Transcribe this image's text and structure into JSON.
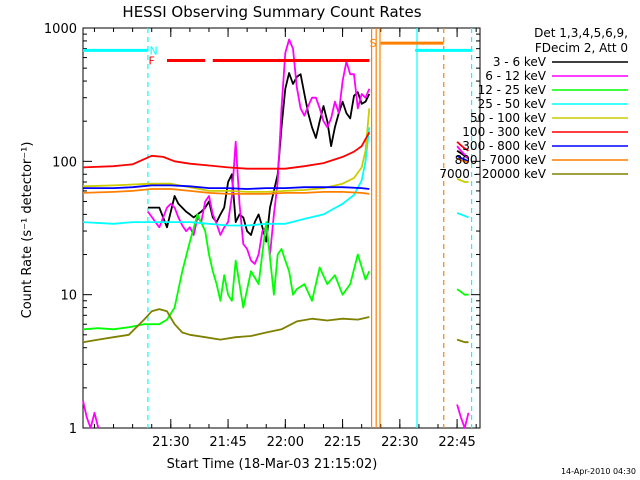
{
  "chart_data": {
    "type": "line",
    "title": "HESSI Observing Summary Count Rates",
    "xlabel": "Start Time (18-Mar-03 21:15:02)",
    "ylabel": "Count Rate (s⁻¹ detector⁻¹)",
    "yscale": "log",
    "ylim": [
      1,
      1000
    ],
    "xlim_minutes": [
      -8.0,
      96.0
    ],
    "yticks": [
      {
        "value": 1,
        "label": "1"
      },
      {
        "value": 10,
        "label": "10"
      },
      {
        "value": 100,
        "label": "100"
      },
      {
        "value": 1000,
        "label": "1000"
      }
    ],
    "xticks": [
      {
        "minute": 15,
        "label": "21:30"
      },
      {
        "minute": 30,
        "label": "21:45"
      },
      {
        "minute": 45,
        "label": "22:00"
      },
      {
        "minute": 60,
        "label": "22:15"
      },
      {
        "minute": 75,
        "label": "22:30"
      },
      {
        "minute": 90,
        "label": "22:45"
      }
    ],
    "legend": {
      "position": "right",
      "header": [
        "Det 1,3,4,5,6,9,",
        "FDecim 2, Att 0"
      ]
    },
    "series": [
      {
        "name": "3 - 6 keV",
        "color": "#000000",
        "segments": [
          {
            "x": [
              9,
              12,
              14,
              16,
              17,
              19,
              20,
              21,
              22,
              23,
              24,
              25,
              26,
              27,
              28,
              29,
              30,
              31,
              32,
              33,
              34,
              35,
              36,
              37,
              38,
              39,
              40,
              41,
              42,
              43,
              44,
              45,
              46,
              47,
              48,
              49,
              50,
              51,
              52,
              53,
              54,
              55,
              56,
              57,
              58,
              59,
              60,
              61,
              62,
              63,
              64,
              65,
              66,
              67
            ],
            "y": [
              45,
              45,
              32,
              55,
              48,
              42,
              40,
              38,
              40,
              42,
              45,
              50,
              38,
              35,
              40,
              45,
              70,
              80,
              35,
              40,
              38,
              30,
              28,
              35,
              40,
              32,
              25,
              45,
              60,
              80,
              180,
              350,
              460,
              380,
              430,
              450,
              320,
              230,
              180,
              150,
              200,
              260,
              200,
              130,
              180,
              230,
              280,
              230,
              210,
              310,
              330,
              270,
              280,
              320
            ]
          },
          {
            "x": [
              90,
              91,
              92,
              93
            ],
            "y": [
              120,
              115,
              110,
              105
            ]
          }
        ]
      },
      {
        "name": "6 - 12 keV",
        "color": "#ff00ff",
        "segments": [
          {
            "x": [
              -8,
              -7,
              -6,
              -5,
              -4
            ],
            "y": [
              1.6,
              1.2,
              1,
              1.3,
              1
            ]
          },
          {
            "x": [
              9,
              12,
              13,
              14,
              15,
              16,
              17,
              18,
              19,
              20,
              21,
              22,
              23,
              24,
              25,
              26,
              27,
              28,
              29,
              30,
              31,
              32,
              33,
              34,
              35,
              36,
              37,
              38,
              39,
              40,
              41,
              42,
              43,
              44,
              45,
              46,
              47,
              48,
              49,
              50,
              51,
              52,
              53,
              54,
              55,
              56,
              57,
              58,
              59,
              60,
              61,
              62,
              63,
              64,
              65,
              66,
              67
            ],
            "y": [
              42,
              32,
              38,
              45,
              48,
              45,
              38,
              33,
              30,
              32,
              28,
              38,
              35,
              50,
              55,
              40,
              34,
              28,
              32,
              35,
              55,
              140,
              48,
              24,
              22,
              18,
              17,
              20,
              30,
              32,
              20,
              40,
              70,
              250,
              650,
              820,
              700,
              360,
              250,
              220,
              260,
              300,
              300,
              250,
              200,
              180,
              210,
              280,
              230,
              400,
              560,
              450,
              450,
              250,
              320,
              300,
              350
            ]
          },
          {
            "x": [
              90,
              91,
              92,
              93
            ],
            "y": [
              130,
              120,
              112,
              105
            ]
          },
          {
            "x": [
              90,
              91,
              92,
              93
            ],
            "y": [
              1.5,
              1.2,
              1,
              1.3
            ]
          }
        ]
      },
      {
        "name": "12 - 25 keV",
        "color": "#00ff00",
        "segments": [
          {
            "x": [
              -8,
              -4,
              0,
              4,
              8,
              12,
              14,
              16,
              18,
              20,
              22,
              24,
              25,
              26,
              27,
              28,
              29,
              30,
              31,
              32,
              34,
              36,
              38,
              40,
              42,
              43,
              44,
              45,
              46,
              47,
              48,
              50,
              52,
              54,
              56,
              58,
              60,
              62,
              64,
              66,
              67
            ],
            "y": [
              5.5,
              5.6,
              5.5,
              5.7,
              6,
              6,
              6.5,
              8,
              15,
              25,
              40,
              30,
              20,
              15,
              12,
              9,
              14,
              10,
              9,
              18,
              8,
              15,
              12,
              35,
              10,
              20,
              22,
              18,
              15,
              10,
              11,
              12,
              9,
              16,
              12,
              14,
              10,
              12,
              20,
              13,
              15
            ]
          },
          {
            "x": [
              90,
              91,
              92,
              93
            ],
            "y": [
              11,
              10.5,
              10,
              10
            ]
          }
        ]
      },
      {
        "name": "25 - 50 keV",
        "color": "#00ffff",
        "segments": [
          {
            "x": [
              -8,
              0,
              5,
              10,
              15,
              20,
              25,
              30,
              35,
              40,
              45,
              50,
              55,
              60,
              63,
              65,
              66,
              67
            ],
            "y": [
              35,
              34,
              35,
              35,
              35,
              35,
              34,
              33,
              33,
              34,
              34,
              37,
              40,
              48,
              56,
              72,
              100,
              180
            ]
          },
          {
            "x": [
              90,
              91,
              92,
              93
            ],
            "y": [
              41,
              40,
              39,
              38
            ]
          }
        ]
      },
      {
        "name": "50 - 100 keV",
        "color": "#cccc00",
        "segments": [
          {
            "x": [
              -8,
              0,
              5,
              10,
              15,
              20,
              25,
              30,
              35,
              40,
              45,
              50,
              55,
              60,
              63,
              65,
              66,
              67
            ],
            "y": [
              65,
              66,
              67,
              68,
              68,
              64,
              60,
              60,
              59,
              59,
              60,
              61,
              63,
              68,
              75,
              90,
              120,
              250
            ]
          },
          {
            "x": [
              90,
              91,
              92,
              93
            ],
            "y": [
              74,
              72,
              70,
              70
            ]
          }
        ]
      },
      {
        "name": "100 - 300 keV",
        "color": "#ff0000",
        "segments": [
          {
            "x": [
              -8,
              0,
              5,
              10,
              13,
              16,
              20,
              25,
              30,
              35,
              40,
              45,
              50,
              55,
              60,
              63,
              65,
              67
            ],
            "y": [
              90,
              92,
              95,
              110,
              108,
              100,
              96,
              93,
              90,
              88,
              88,
              88,
              92,
              97,
              108,
              118,
              130,
              165
            ]
          },
          {
            "x": [
              90,
              91,
              92,
              93
            ],
            "y": [
              140,
              132,
              125,
              120
            ]
          }
        ]
      },
      {
        "name": "300 - 800 keV",
        "color": "#0000ff",
        "segments": [
          {
            "x": [
              -8,
              0,
              5,
              10,
              15,
              20,
              25,
              30,
              35,
              40,
              45,
              50,
              55,
              60,
              65,
              67
            ],
            "y": [
              63,
              63,
              64,
              66,
              66,
              65,
              63,
              63,
              62,
              63,
              63,
              64,
              64,
              64,
              63,
              62
            ]
          },
          {
            "x": [
              90,
              91,
              92,
              93
            ],
            "y": [
              110,
              106,
              103,
              100
            ]
          }
        ]
      },
      {
        "name": "800 - 7000 keV",
        "color": "#ff7f00",
        "segments": [
          {
            "x": [
              -8,
              0,
              5,
              10,
              15,
              20,
              25,
              30,
              35,
              40,
              45,
              50,
              55,
              60,
              65,
              67
            ],
            "y": [
              58,
              59,
              60,
              62,
              62,
              60,
              58,
              57,
              57,
              57,
              58,
              58,
              59,
              59,
              58,
              57
            ]
          },
          {
            "x": [
              90,
              91,
              92,
              93
            ],
            "y": [
              105,
              102,
              100,
              98
            ]
          }
        ]
      },
      {
        "name": "7000 - 20000 keV",
        "color": "#808000",
        "segments": [
          {
            "x": [
              -8,
              -4,
              0,
              4,
              8,
              10,
              12,
              14,
              16,
              18,
              20,
              24,
              28,
              32,
              36,
              40,
              44,
              48,
              52,
              56,
              60,
              64,
              67
            ],
            "y": [
              4.4,
              4.6,
              4.8,
              5,
              6.5,
              7.5,
              7.8,
              7.5,
              6,
              5.2,
              5,
              4.8,
              4.6,
              4.8,
              4.9,
              5.2,
              5.5,
              6.3,
              6.6,
              6.4,
              6.6,
              6.5,
              6.8
            ]
          },
          {
            "x": [
              90,
              91,
              92,
              93
            ],
            "y": [
              4.6,
              4.5,
              4.4,
              4.4
            ]
          }
        ]
      }
    ],
    "flags": [
      {
        "label": "N",
        "color": "#00ffff",
        "x": [
          -8,
          9
        ],
        "y": 680,
        "label_x": 10.5
      },
      {
        "label": "N",
        "color": "#00ffff",
        "x": [
          79,
          94
        ],
        "y": 680
      },
      {
        "label": "F",
        "color": "#ff0000",
        "x": [
          14,
          24
        ],
        "y": 570,
        "label_x": 10
      },
      {
        "label": "F",
        "color": "#ff0000",
        "x": [
          26,
          67
        ],
        "y": 570
      },
      {
        "label": "S",
        "color": "#ff7f00",
        "x": [
          70,
          86.5
        ],
        "y": 770,
        "label_x": 68
      }
    ],
    "vlines": [
      {
        "x": 9,
        "color": "#00ffff",
        "dash": true
      },
      {
        "x": 93.8,
        "color": "#00ffff",
        "dash": true
      },
      {
        "x": 86.5,
        "color": "#ff7f00",
        "dash": true
      },
      {
        "x": 79.5,
        "color": "#00ffff",
        "dash": false
      },
      {
        "x": 67.6,
        "color": "#ff7f00",
        "dash": false
      },
      {
        "x": 68.8,
        "color": "#ff7f00",
        "dash": false
      },
      {
        "x": 69.8,
        "color": "#ff7f00",
        "dash": false
      }
    ],
    "footer_date": "14-Apr-2010 04:30"
  }
}
